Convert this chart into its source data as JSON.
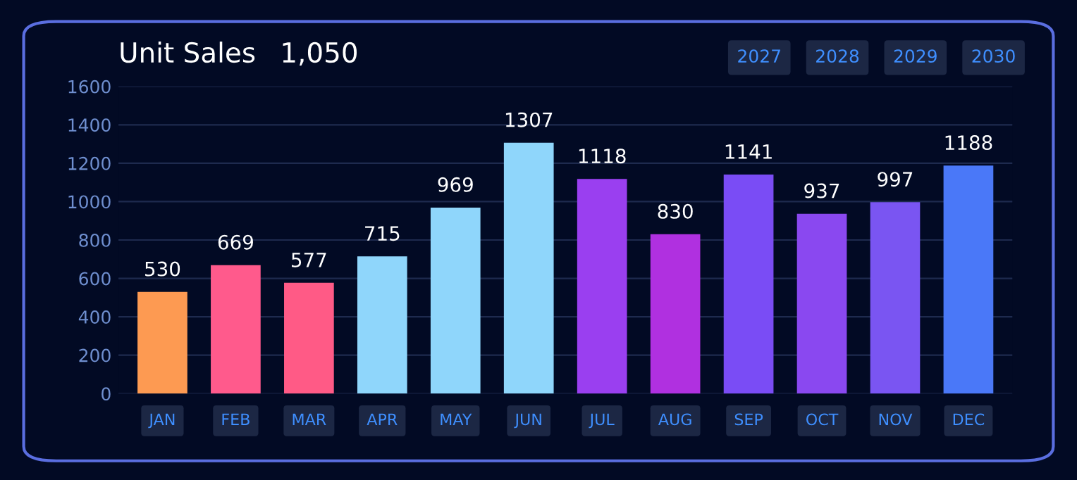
{
  "chart_data": {
    "type": "bar",
    "title": "Unit Sales",
    "subtitle": "1,050",
    "categories": [
      "JAN",
      "FEB",
      "MAR",
      "APR",
      "MAY",
      "JUN",
      "JUL",
      "AUG",
      "SEP",
      "OCT",
      "NOV",
      "DEC"
    ],
    "values": [
      530,
      669,
      577,
      715,
      969,
      1307,
      1118,
      830,
      1141,
      937,
      997,
      1188
    ],
    "colors": [
      "#fd9a52",
      "#ff5a8c",
      "#ff5a86",
      "#8fd6fb",
      "#8fd6fb",
      "#8fd6fb",
      "#9a3ff0",
      "#b030e0",
      "#7a4cf5",
      "#8a48f0",
      "#7a55f2",
      "#4a78f8"
    ],
    "ylim": [
      0,
      1600
    ],
    "yticks": [
      0,
      200,
      400,
      600,
      800,
      1000,
      1200,
      1400,
      1600
    ],
    "grid": "y",
    "data_labels": true,
    "annotations": [
      "2027",
      "2028",
      "2029",
      "2030"
    ]
  }
}
